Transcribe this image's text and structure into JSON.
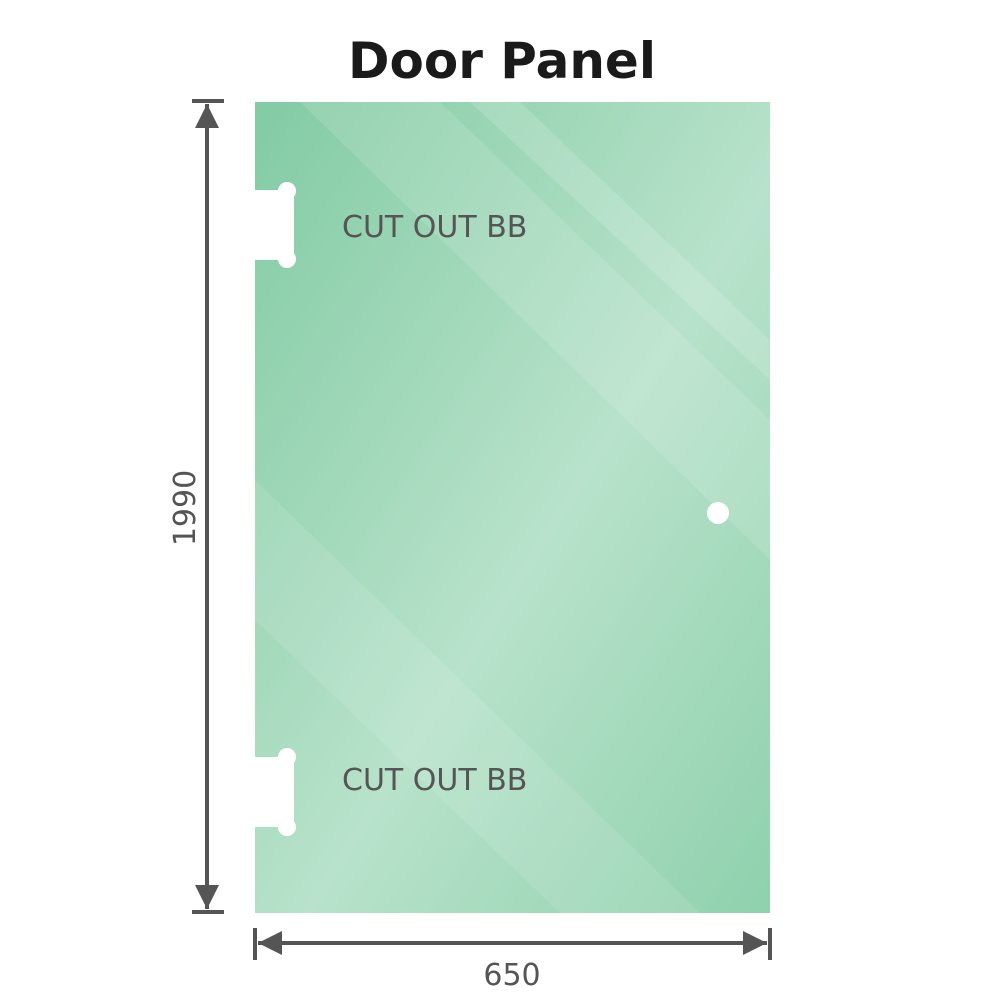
{
  "title": "Door Panel",
  "panel": {
    "color": "#86cfa8",
    "cutout_top_label": "CUT OUT BB",
    "cutout_bottom_label": "CUT OUT BB"
  },
  "dimensions": {
    "height": "1990",
    "width": "650",
    "line_color": "#555555"
  }
}
